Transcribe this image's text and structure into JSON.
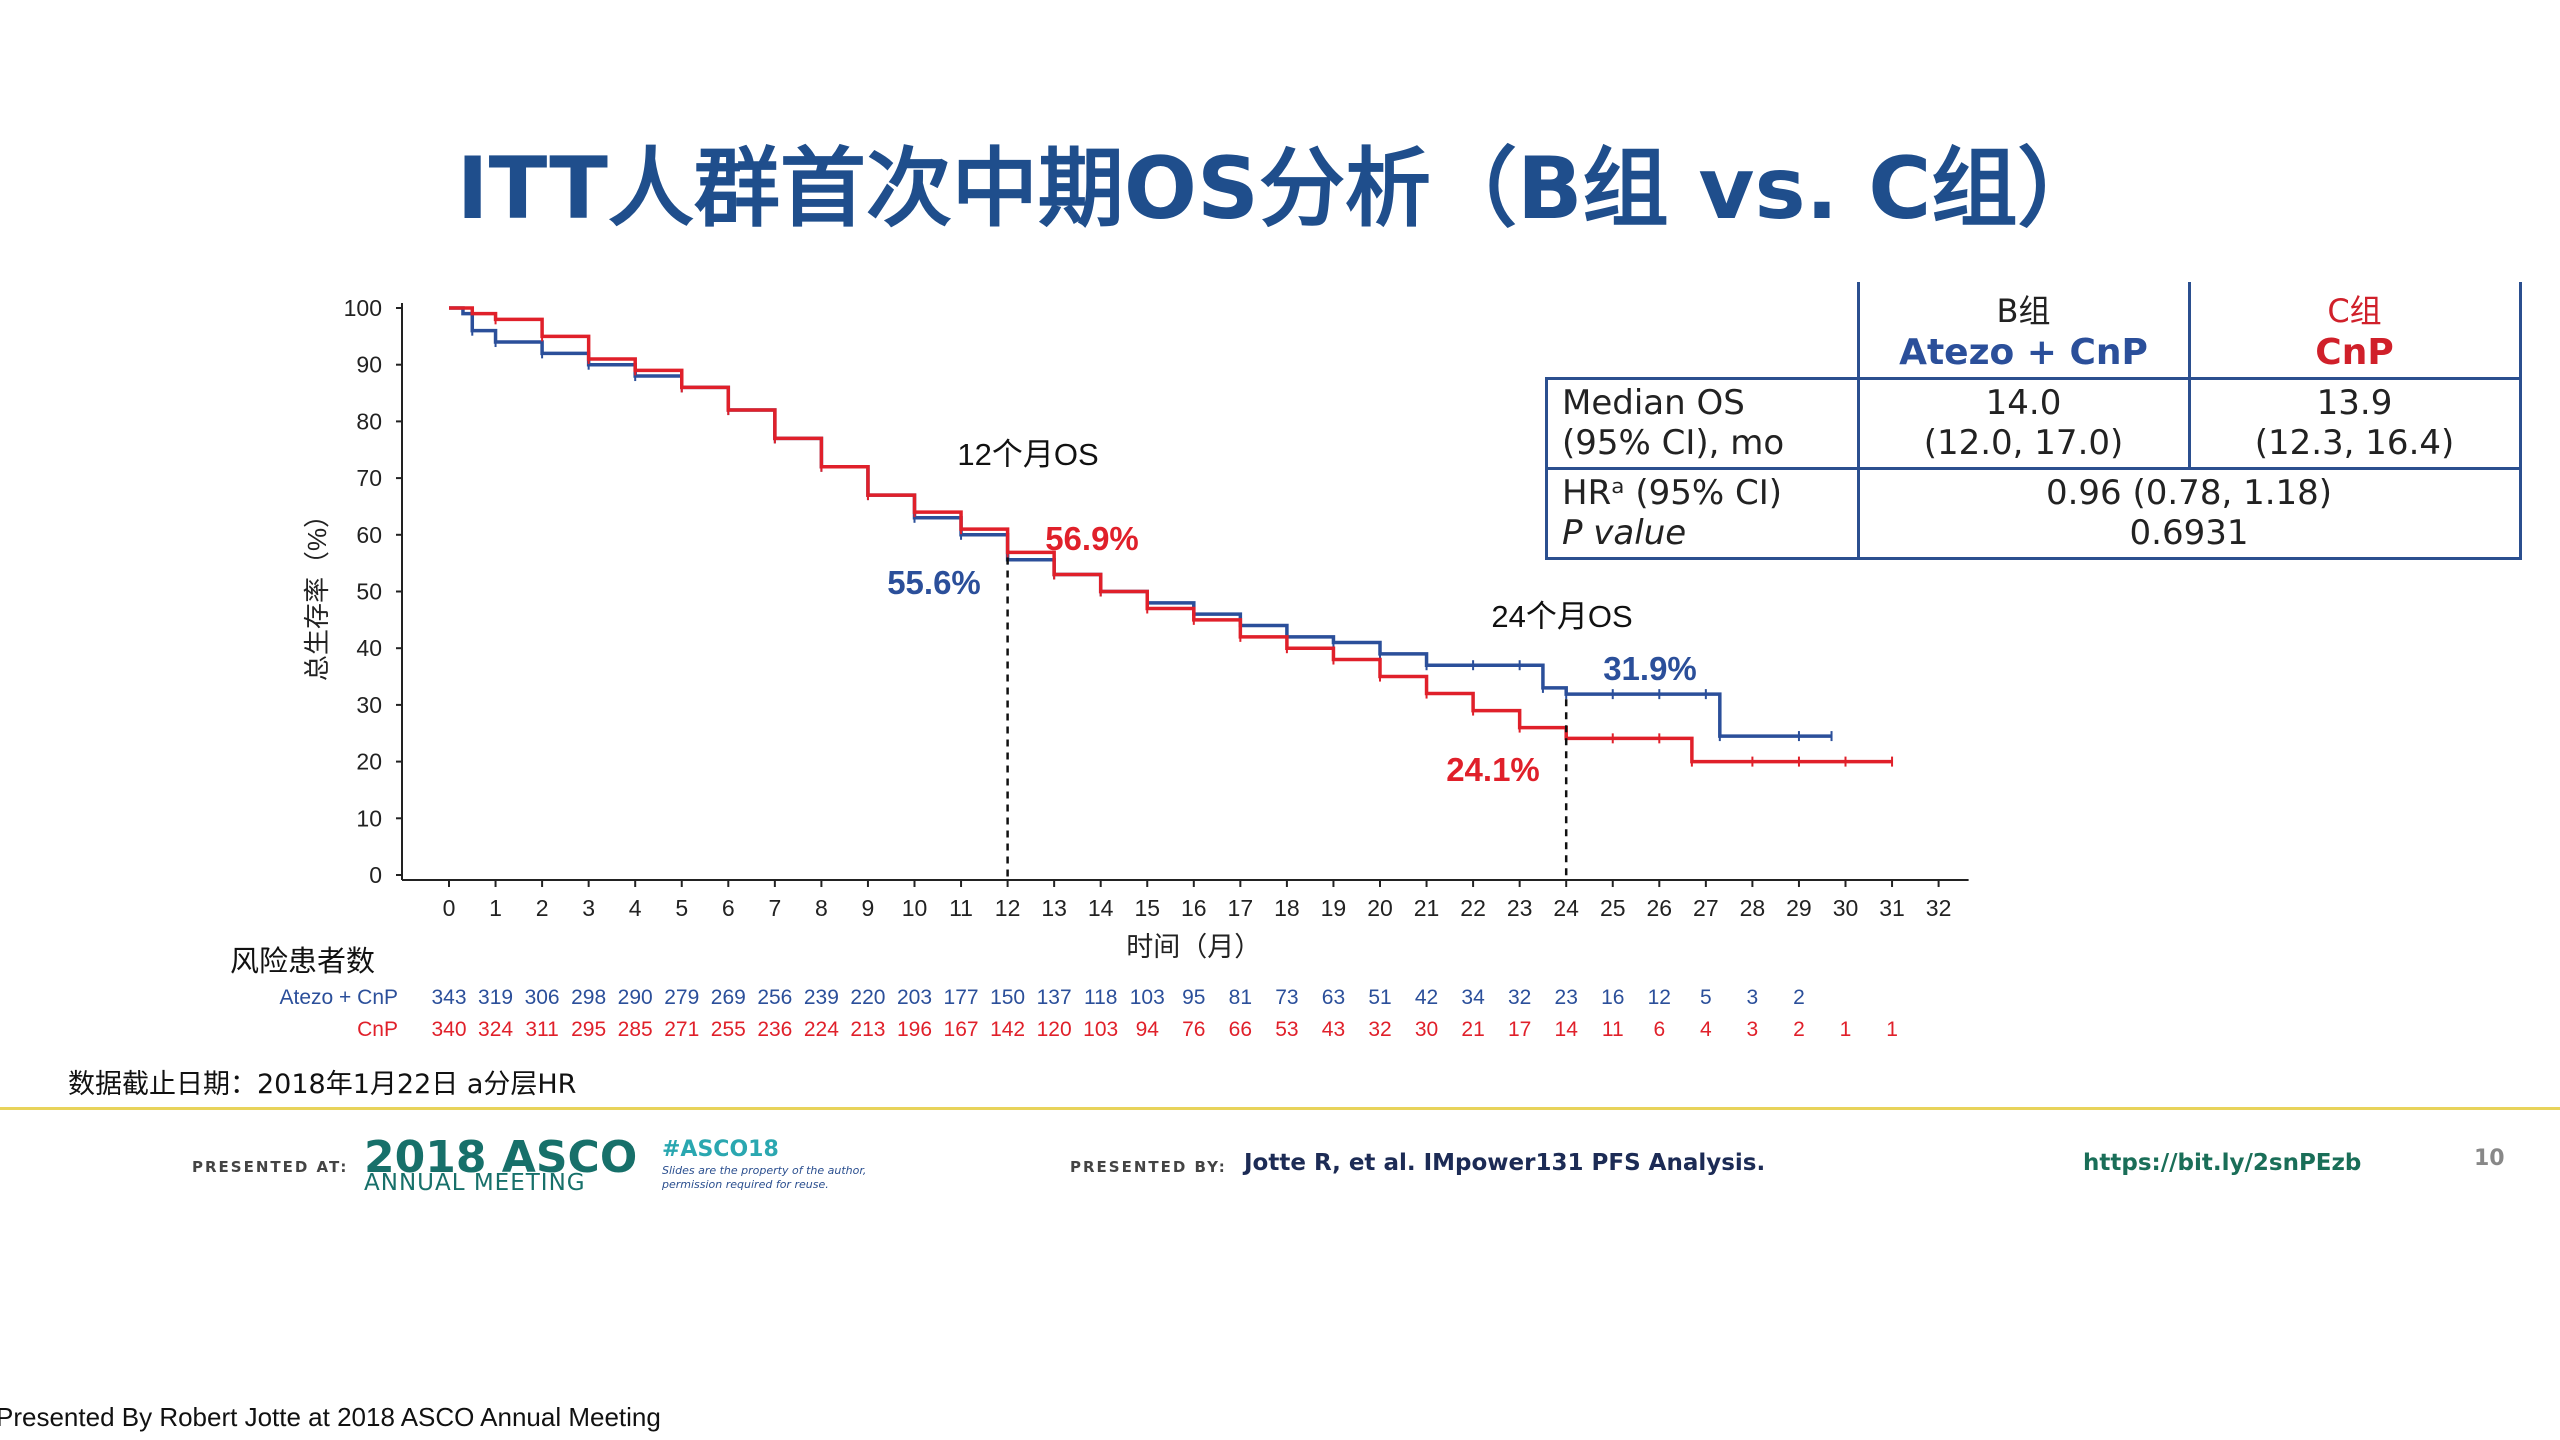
{
  "slide": {
    "title": "ITT人群首次中期OS分析（B组 vs. C组）",
    "footnote": "数据截止日期：2018年1月22日    a分层HR",
    "credit": "Presented By Robert Jotte at 2018 ASCO Annual Meeting"
  },
  "median_table": {
    "col_b_group": "B组",
    "col_b_regimen": "Atezo + CnP",
    "col_c_group": "C组",
    "col_c_regimen": "CnP",
    "row1_label_line1": "Median OS",
    "row1_label_line2": "(95% CI), mo",
    "row1_b_line1": "14.0",
    "row1_b_line2": "(12.0, 17.0)",
    "row1_c_line1": "13.9",
    "row1_c_line2": "(12.3, 16.4)",
    "row2_label_line1": "HRᵃ (95% CI)",
    "row2_label_line2": "P value",
    "row2_value_line1": "0.96 (0.78, 1.18)",
    "row2_value_line2": "0.6931"
  },
  "footer": {
    "presented_at_label": "PRESENTED AT:",
    "asco_year": "2018",
    "asco_name": "ASCO",
    "asco_meeting": "ANNUAL MEETING",
    "asco_hashtag": "#ASCO18",
    "asco_note": "Slides are the property of the author, permission required for reuse.",
    "presented_by_label": "PRESENTED BY:",
    "presenter": "Jotte R, et al. IMpower131 PFS Analysis.",
    "link": "https://bit.ly/2snPEzb",
    "page_number": "10"
  },
  "chart_data": {
    "type": "line",
    "title": "",
    "xlabel": "时间（月）",
    "ylabel": "总生存率（%）",
    "xlim": [
      0,
      32
    ],
    "ylim": [
      0,
      100
    ],
    "x_ticks": [
      "0",
      "1",
      "2",
      "3",
      "4",
      "5",
      "6",
      "7",
      "8",
      "9",
      "10",
      "11",
      "12",
      "13",
      "14",
      "15",
      "16",
      "17",
      "18",
      "19",
      "20",
      "21",
      "22",
      "23",
      "24",
      "25",
      "26",
      "27",
      "28",
      "29",
      "30",
      "31",
      "32"
    ],
    "y_ticks": [
      "0",
      "10",
      "20",
      "30",
      "40",
      "50",
      "60",
      "70",
      "80",
      "90",
      "100"
    ],
    "series": [
      {
        "name": "Atezo + CnP",
        "color": "#2b4f9a",
        "points": [
          [
            0,
            100
          ],
          [
            0.3,
            99
          ],
          [
            0.5,
            96
          ],
          [
            1,
            94
          ],
          [
            2,
            92
          ],
          [
            3,
            90
          ],
          [
            4,
            88
          ],
          [
            5,
            86
          ],
          [
            6,
            82
          ],
          [
            7,
            77
          ],
          [
            8,
            72
          ],
          [
            9,
            67
          ],
          [
            10,
            63
          ],
          [
            11,
            60
          ],
          [
            12,
            55.6
          ],
          [
            13,
            53
          ],
          [
            14,
            50
          ],
          [
            15,
            48
          ],
          [
            16,
            46
          ],
          [
            17,
            44
          ],
          [
            18,
            42
          ],
          [
            19,
            41
          ],
          [
            20,
            39
          ],
          [
            21,
            37
          ],
          [
            22,
            37
          ],
          [
            23,
            37
          ],
          [
            23.5,
            33
          ],
          [
            24,
            31.9
          ],
          [
            25,
            31.9
          ],
          [
            26,
            31.9
          ],
          [
            27,
            31.9
          ],
          [
            27.3,
            24.5
          ],
          [
            29,
            24.5
          ],
          [
            29.7,
            24.5
          ]
        ]
      },
      {
        "name": "CnP",
        "color": "#e0202a",
        "points": [
          [
            0,
            100
          ],
          [
            0.5,
            99
          ],
          [
            1,
            98
          ],
          [
            2,
            95
          ],
          [
            3,
            91
          ],
          [
            4,
            89
          ],
          [
            5,
            86
          ],
          [
            6,
            82
          ],
          [
            7,
            77
          ],
          [
            8,
            72
          ],
          [
            9,
            67
          ],
          [
            10,
            64
          ],
          [
            11,
            61
          ],
          [
            12,
            56.9
          ],
          [
            13,
            53
          ],
          [
            14,
            50
          ],
          [
            15,
            47
          ],
          [
            16,
            45
          ],
          [
            17,
            42
          ],
          [
            18,
            40
          ],
          [
            19,
            38
          ],
          [
            20,
            35
          ],
          [
            21,
            32
          ],
          [
            22,
            29
          ],
          [
            23,
            26
          ],
          [
            24,
            24.1
          ],
          [
            25,
            24.1
          ],
          [
            26,
            24.1
          ],
          [
            26.7,
            20
          ],
          [
            28,
            20
          ],
          [
            29,
            20
          ],
          [
            30,
            20
          ],
          [
            31,
            20
          ]
        ]
      }
    ],
    "annotations": [
      {
        "label": "12个月OS",
        "x": 12
      },
      {
        "label": "24个月OS",
        "x": 24
      },
      {
        "series": "Atezo + CnP",
        "x": 12,
        "value": "55.6%",
        "color": "#2b4f9a"
      },
      {
        "series": "CnP",
        "x": 12,
        "value": "56.9%",
        "color": "#e0202a"
      },
      {
        "series": "Atezo + CnP",
        "x": 24,
        "value": "31.9%",
        "color": "#2b4f9a"
      },
      {
        "series": "CnP",
        "x": 24,
        "value": "24.1%",
        "color": "#e0202a"
      }
    ],
    "risk_table": {
      "title": "风险患者数",
      "rows": [
        {
          "label": "Atezo + CnP",
          "color": "#2b4f9a",
          "values": [
            "343",
            "319",
            "306",
            "298",
            "290",
            "279",
            "269",
            "256",
            "239",
            "220",
            "203",
            "177",
            "150",
            "137",
            "118",
            "103",
            "95",
            "81",
            "73",
            "63",
            "51",
            "42",
            "34",
            "32",
            "23",
            "16",
            "12",
            "5",
            "3",
            "2"
          ]
        },
        {
          "label": "CnP",
          "color": "#e0202a",
          "values": [
            "340",
            "324",
            "311",
            "295",
            "285",
            "271",
            "255",
            "236",
            "224",
            "213",
            "196",
            "167",
            "142",
            "120",
            "103",
            "94",
            "76",
            "66",
            "53",
            "43",
            "32",
            "30",
            "21",
            "17",
            "14",
            "11",
            "6",
            "4",
            "3",
            "2",
            "1",
            "1"
          ]
        }
      ]
    }
  }
}
